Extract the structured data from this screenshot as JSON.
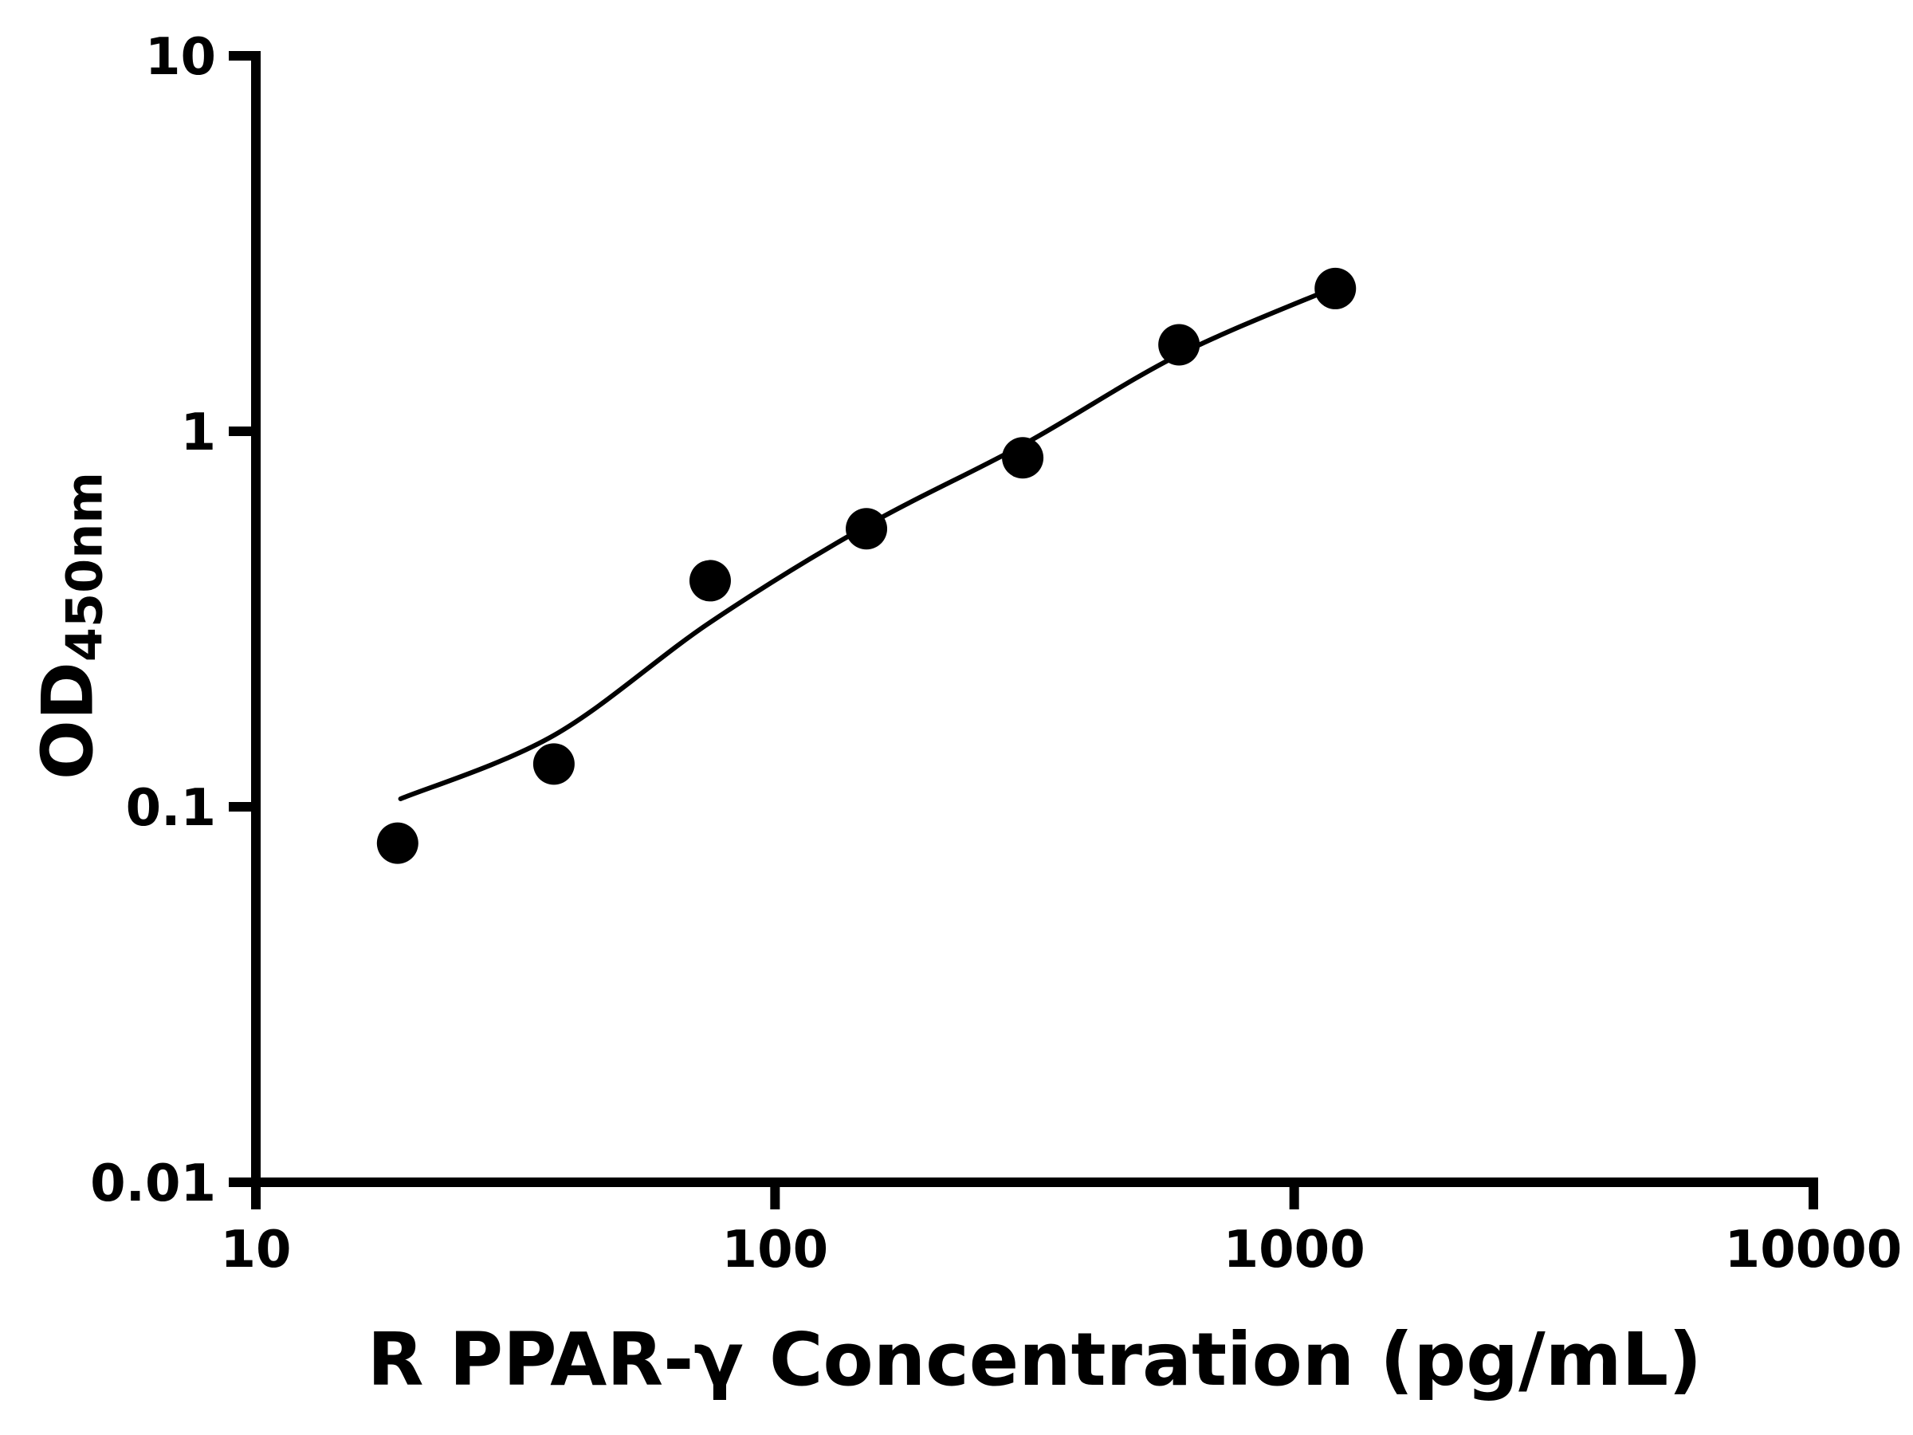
{
  "figure": {
    "background_color": "#ffffff",
    "ink_color": "#000000"
  },
  "chart_data": {
    "type": "scatter",
    "title": "",
    "xlabel": "R PPAR-γ Concentration (pg/mL)",
    "ylabel_main": "OD",
    "ylabel_sub": "450nm",
    "x_scale": "log",
    "y_scale": "log",
    "xlim": [
      10,
      10000
    ],
    "ylim": [
      0.01,
      10
    ],
    "x_ticks": [
      10,
      100,
      1000,
      10000
    ],
    "x_tick_labels": [
      "10",
      "100",
      "1000",
      "10000"
    ],
    "y_ticks": [
      0.01,
      0.1,
      1,
      10
    ],
    "y_tick_labels": [
      "0.01",
      "0.1",
      "1",
      "10"
    ],
    "grid": false,
    "legend": false,
    "marker": "filled-circle",
    "marker_color": "#000000",
    "line_color": "#000000",
    "series": [
      {
        "name": "standard-curve-points",
        "x": [
          18.75,
          37.5,
          75,
          150,
          300,
          600,
          1200
        ],
        "y": [
          0.08,
          0.13,
          0.4,
          0.55,
          0.85,
          1.7,
          2.4
        ]
      }
    ],
    "fit_curve": {
      "name": "4pl-fit-line",
      "x": [
        19,
        37.5,
        75,
        150,
        300,
        600,
        1200
      ],
      "y": [
        0.105,
        0.155,
        0.31,
        0.56,
        0.92,
        1.6,
        2.42
      ]
    }
  }
}
